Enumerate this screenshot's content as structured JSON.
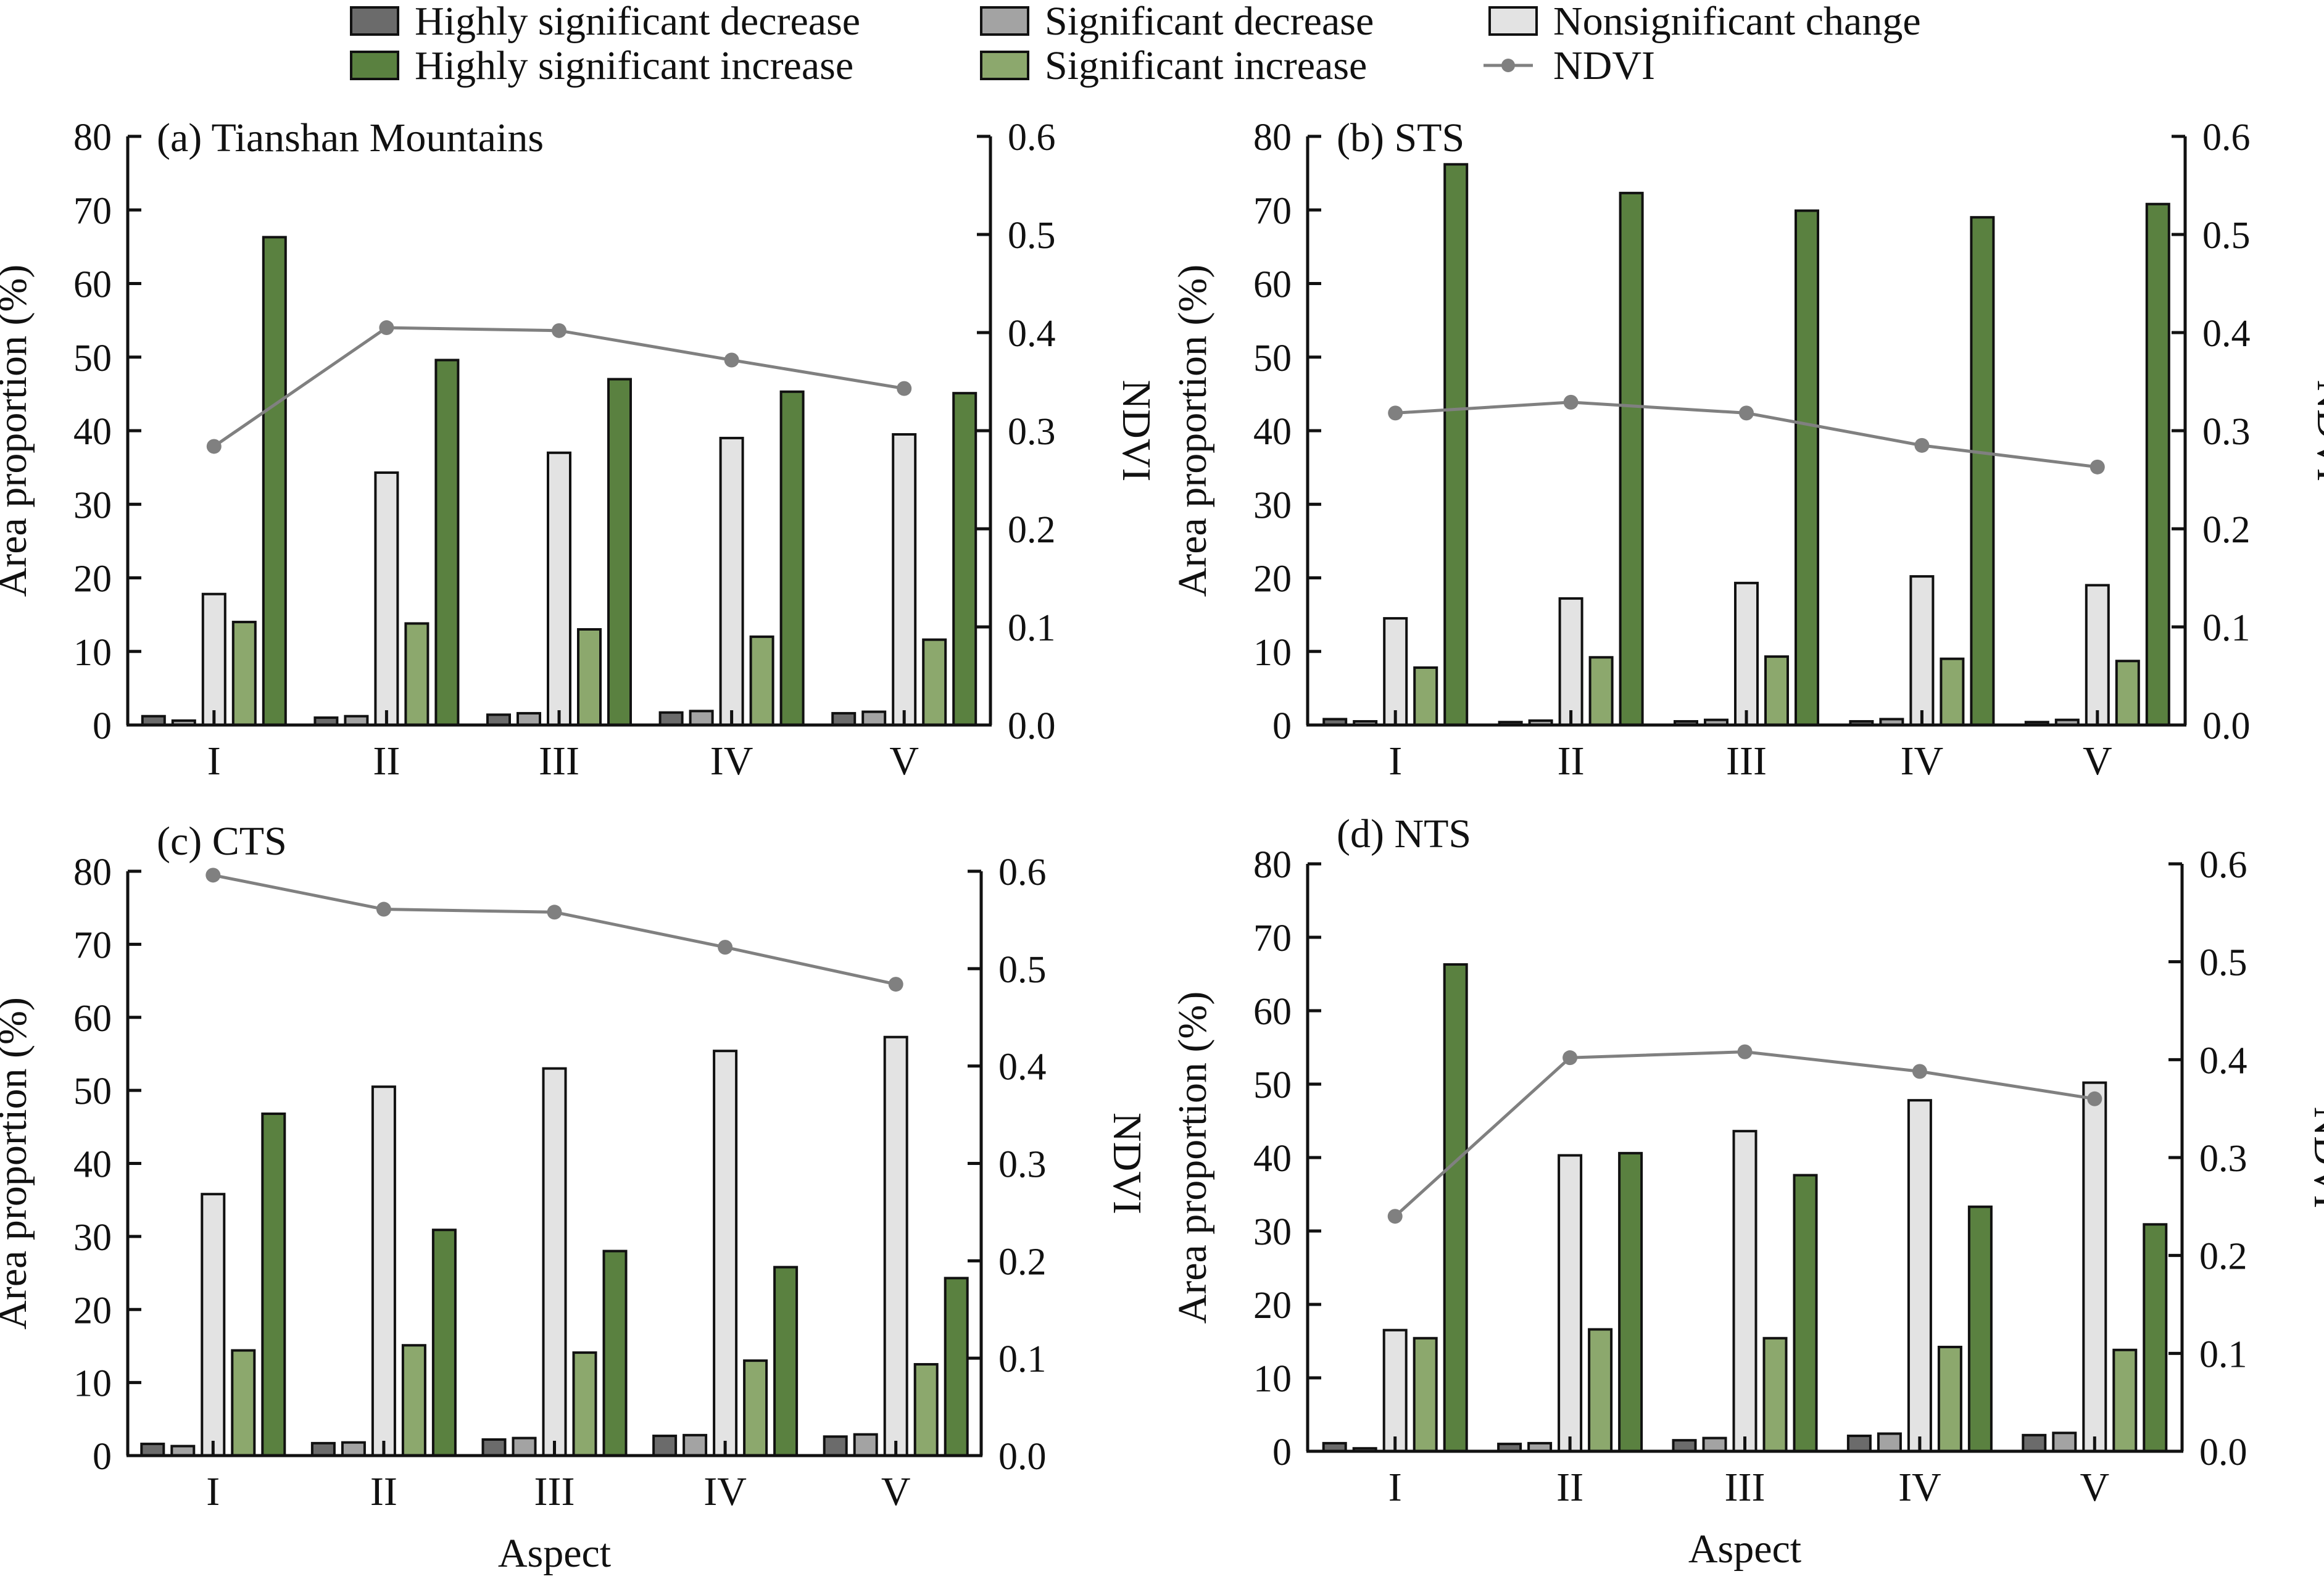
{
  "legend": [
    {
      "name": "Highly significant decrease",
      "color": "#6b6b6b"
    },
    {
      "name": "Significant decrease",
      "color": "#a3a3a3"
    },
    {
      "name": "Nonsignificant change",
      "color": "#e3e3e3"
    },
    {
      "name": "Highly significant increase",
      "color": "#5a8140"
    },
    {
      "name": "Significant increase",
      "color": "#8ca86d"
    },
    {
      "name": "NDVI",
      "color": "#808080"
    }
  ],
  "chart_data": [
    {
      "type": "bar",
      "title": "(a) Tianshan Mountains",
      "xlabel": "",
      "ylabel": "Area proportion (%)",
      "y2label": "NDVI",
      "ylim": [
        0,
        80
      ],
      "y2lim": [
        0,
        0.6
      ],
      "yticks": [
        "0",
        "10",
        "20",
        "30",
        "40",
        "50",
        "60",
        "70",
        "80"
      ],
      "y2ticks": [
        "0.0",
        "0.1",
        "0.2",
        "0.3",
        "0.4",
        "0.5",
        "0.6"
      ],
      "categories": [
        "I",
        "II",
        "III",
        "IV",
        "V"
      ],
      "series": [
        {
          "name": "Highly significant decrease",
          "values": [
            1.2,
            1.0,
            1.4,
            1.7,
            1.6
          ]
        },
        {
          "name": "Significant decrease",
          "values": [
            0.6,
            1.2,
            1.6,
            1.9,
            1.8
          ]
        },
        {
          "name": "Nonsignificant change",
          "values": [
            17.8,
            34.3,
            37.0,
            39.0,
            39.5
          ]
        },
        {
          "name": "Significant increase",
          "values": [
            14.0,
            13.8,
            13.0,
            12.0,
            11.6
          ]
        },
        {
          "name": "Highly significant increase",
          "values": [
            66.3,
            49.6,
            47.0,
            45.3,
            45.1
          ]
        }
      ],
      "ndvi": [
        0.284,
        0.405,
        0.402,
        0.372,
        0.343
      ]
    },
    {
      "type": "bar",
      "title": "(b) STS",
      "xlabel": "",
      "ylabel": "Area proportion (%)",
      "y2label": "NDVI",
      "ylim": [
        0,
        80
      ],
      "y2lim": [
        0,
        0.6
      ],
      "yticks": [
        "0",
        "10",
        "20",
        "30",
        "40",
        "50",
        "60",
        "70",
        "80"
      ],
      "y2ticks": [
        "0.0",
        "0.1",
        "0.2",
        "0.3",
        "0.4",
        "0.5",
        "0.6"
      ],
      "categories": [
        "I",
        "II",
        "III",
        "IV",
        "V"
      ],
      "series": [
        {
          "name": "Highly significant decrease",
          "values": [
            0.8,
            0.4,
            0.5,
            0.5,
            0.4
          ]
        },
        {
          "name": "Significant decrease",
          "values": [
            0.5,
            0.6,
            0.7,
            0.8,
            0.7
          ]
        },
        {
          "name": "Nonsignificant change",
          "values": [
            14.5,
            17.2,
            19.3,
            20.2,
            19.0
          ]
        },
        {
          "name": "Significant increase",
          "values": [
            7.8,
            9.2,
            9.3,
            9.0,
            8.7
          ]
        },
        {
          "name": "Highly significant increase",
          "values": [
            76.2,
            72.3,
            69.9,
            69.0,
            70.8
          ]
        }
      ],
      "ndvi": [
        0.318,
        0.329,
        0.318,
        0.285,
        0.263
      ]
    },
    {
      "type": "bar",
      "title": "(c) CTS",
      "xlabel": "Aspect",
      "ylabel": "Area proportion (%)",
      "y2label": "NDVI",
      "ylim": [
        0,
        80
      ],
      "y2lim": [
        0,
        0.6
      ],
      "yticks": [
        "0",
        "10",
        "20",
        "30",
        "40",
        "50",
        "60",
        "70",
        "80"
      ],
      "y2ticks": [
        "0.0",
        "0.1",
        "0.2",
        "0.3",
        "0.4",
        "0.5",
        "0.6"
      ],
      "categories": [
        "I",
        "II",
        "III",
        "IV",
        "V"
      ],
      "series": [
        {
          "name": "Highly significant decrease",
          "values": [
            1.6,
            1.7,
            2.2,
            2.7,
            2.6
          ]
        },
        {
          "name": "Significant decrease",
          "values": [
            1.3,
            1.8,
            2.4,
            2.8,
            2.9
          ]
        },
        {
          "name": "Nonsignificant change",
          "values": [
            35.8,
            50.5,
            53.0,
            55.4,
            57.3
          ]
        },
        {
          "name": "Significant increase",
          "values": [
            14.4,
            15.1,
            14.1,
            13.0,
            12.5
          ]
        },
        {
          "name": "Highly significant increase",
          "values": [
            46.8,
            30.9,
            28.0,
            25.8,
            24.3
          ]
        }
      ],
      "ndvi": [
        0.596,
        0.561,
        0.558,
        0.522,
        0.484
      ]
    },
    {
      "type": "bar",
      "title": "(d) NTS",
      "xlabel": "Aspect",
      "ylabel": "Area proportion (%)",
      "y2label": "NDVI",
      "ylim": [
        0,
        80
      ],
      "y2lim": [
        0,
        0.6
      ],
      "yticks": [
        "0",
        "10",
        "20",
        "30",
        "40",
        "50",
        "60",
        "70",
        "80"
      ],
      "y2ticks": [
        "0.0",
        "0.1",
        "0.2",
        "0.3",
        "0.4",
        "0.5",
        "0.6"
      ],
      "categories": [
        "I",
        "II",
        "III",
        "IV",
        "V"
      ],
      "series": [
        {
          "name": "Highly significant decrease",
          "values": [
            1.1,
            1.0,
            1.5,
            2.1,
            2.2
          ]
        },
        {
          "name": "Significant decrease",
          "values": [
            0.4,
            1.1,
            1.8,
            2.4,
            2.5
          ]
        },
        {
          "name": "Nonsignificant change",
          "values": [
            16.5,
            40.3,
            43.6,
            47.8,
            50.2
          ]
        },
        {
          "name": "Significant increase",
          "values": [
            15.4,
            16.6,
            15.4,
            14.2,
            13.8
          ]
        },
        {
          "name": "Highly significant increase",
          "values": [
            66.3,
            40.6,
            37.6,
            33.3,
            30.9
          ]
        }
      ],
      "ndvi": [
        0.24,
        0.402,
        0.408,
        0.388,
        0.36
      ]
    }
  ]
}
